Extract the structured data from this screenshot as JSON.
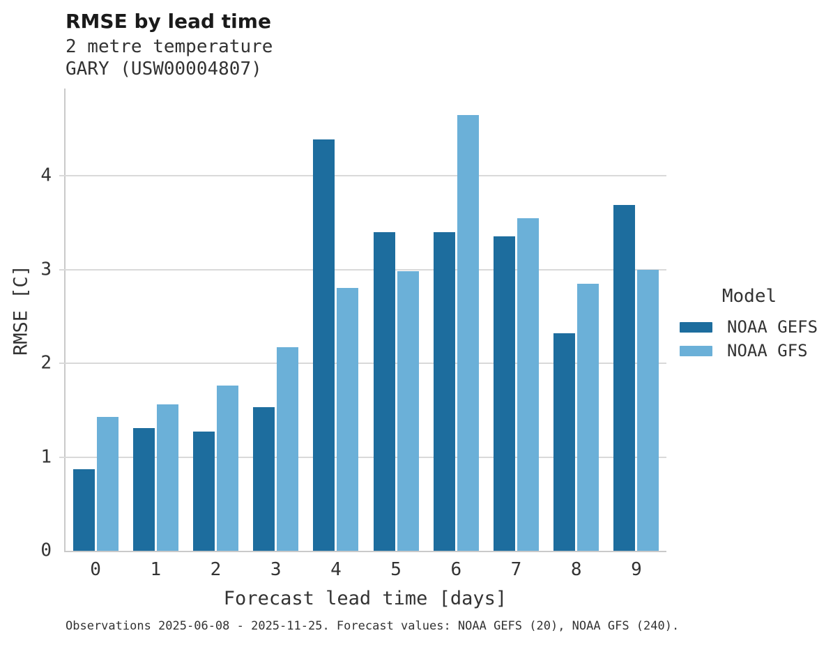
{
  "header": {
    "title": "RMSE by lead time",
    "subtitle_line1": "2 metre temperature",
    "subtitle_line2": "GARY (USW00004807)"
  },
  "legend": {
    "title": "Model",
    "entries": [
      {
        "label": "NOAA GEFS",
        "color": "#1d6d9e"
      },
      {
        "label": "NOAA GFS",
        "color": "#6bb0d8"
      }
    ]
  },
  "footer": {
    "caption": "Observations 2025-06-08 - 2025-11-25. Forecast values: NOAA GEFS (20), NOAA GFS (240)."
  },
  "chart_data": {
    "type": "bar",
    "title": "RMSE by lead time",
    "subtitle": "2 metre temperature / GARY (USW00004807)",
    "xlabel": "Forecast lead time [days]",
    "ylabel": "RMSE [C]",
    "categories": [
      0,
      1,
      2,
      3,
      4,
      5,
      6,
      7,
      8,
      9
    ],
    "series": [
      {
        "name": "NOAA GEFS",
        "color": "#1d6d9e",
        "values": [
          0.87,
          1.31,
          1.27,
          1.53,
          4.39,
          3.4,
          3.4,
          3.35,
          2.32,
          3.69
        ]
      },
      {
        "name": "NOAA GFS",
        "color": "#6bb0d8",
        "values": [
          1.43,
          1.56,
          1.76,
          2.17,
          2.8,
          2.98,
          4.65,
          3.55,
          2.85,
          3.0
        ]
      }
    ],
    "ylim": [
      0,
      4.93
    ],
    "yticks": [
      0,
      1,
      2,
      3,
      4
    ],
    "grid": true,
    "legend_position": "right"
  }
}
